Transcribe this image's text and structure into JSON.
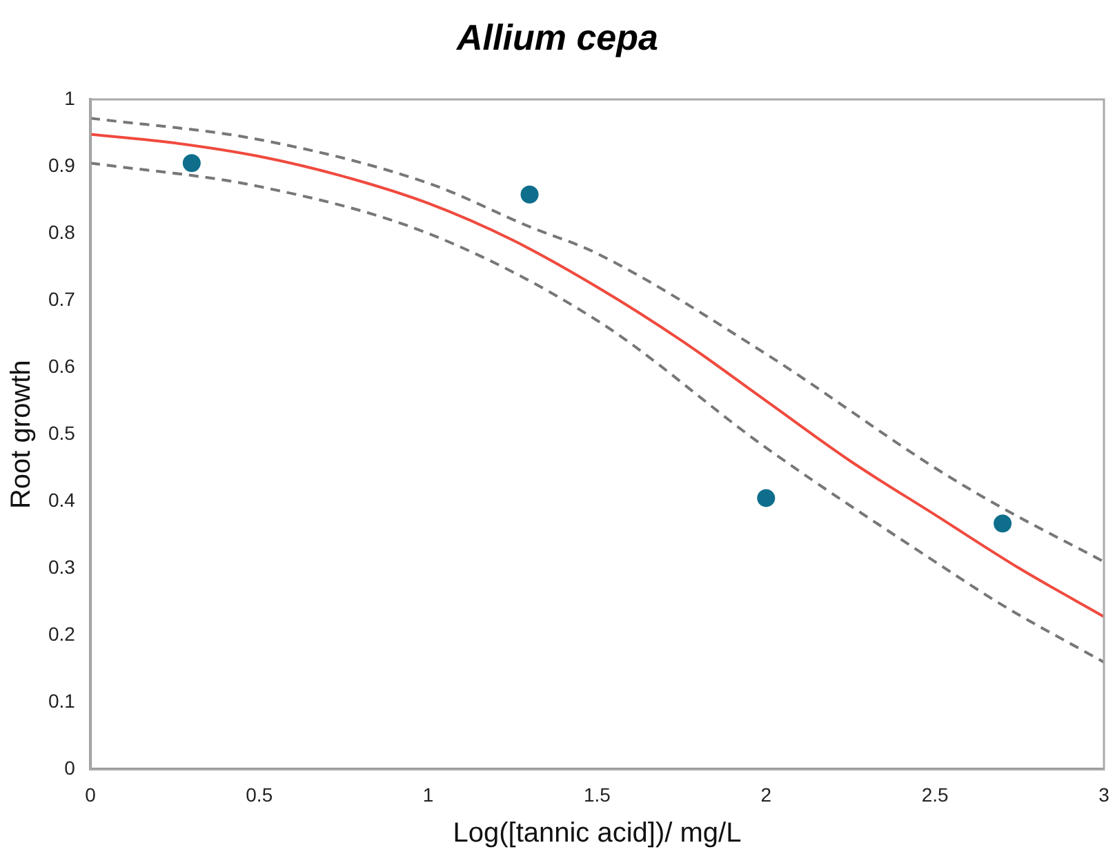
{
  "chart_data": {
    "type": "scatter",
    "title": "Allium cepa",
    "xlabel": "Log([tannic acid])/ mg/L",
    "ylabel": "Root growth",
    "xlim": [
      0,
      3
    ],
    "xticks": [
      0,
      0.5,
      1,
      1.5,
      2,
      2.5,
      3
    ],
    "ylim": [
      0,
      1
    ],
    "yticks": [
      0,
      0.1,
      0.2,
      0.3,
      0.4,
      0.5,
      0.6,
      0.7,
      0.8,
      0.9,
      1
    ],
    "grid": false,
    "legend": false,
    "series": [
      {
        "type": "line",
        "color": "#f04a3e",
        "line_style": "solid",
        "marker": "none",
        "x": [
          0,
          0.25,
          0.5,
          0.75,
          1,
          1.25,
          1.5,
          1.75,
          2,
          2.25,
          2.5,
          2.75,
          3
        ],
        "values": [
          0.948,
          0.935,
          0.915,
          0.885,
          0.845,
          0.79,
          0.72,
          0.64,
          0.55,
          0.46,
          0.38,
          0.3,
          0.228
        ]
      },
      {
        "type": "line",
        "color": "#777777",
        "line_style": "dashed",
        "marker": "none",
        "x": [
          0,
          0.5,
          1,
          1.3,
          1.5,
          2,
          2.5,
          2.7,
          3
        ],
        "values": [
          0.972,
          0.94,
          0.875,
          0.81,
          0.77,
          0.62,
          0.45,
          0.39,
          0.31
        ]
      },
      {
        "type": "line",
        "color": "#777777",
        "line_style": "dashed",
        "marker": "none",
        "x": [
          0,
          0.5,
          1,
          1.5,
          2,
          2.5,
          2.7,
          3
        ],
        "values": [
          0.905,
          0.87,
          0.8,
          0.67,
          0.48,
          0.31,
          0.245,
          0.16
        ]
      },
      {
        "color": "#0e6e8c",
        "marker": "circle",
        "x": [
          0.3,
          1.3,
          2,
          2.7
        ],
        "values": [
          0.905,
          0.858,
          0.405,
          0.367
        ]
      }
    ]
  }
}
